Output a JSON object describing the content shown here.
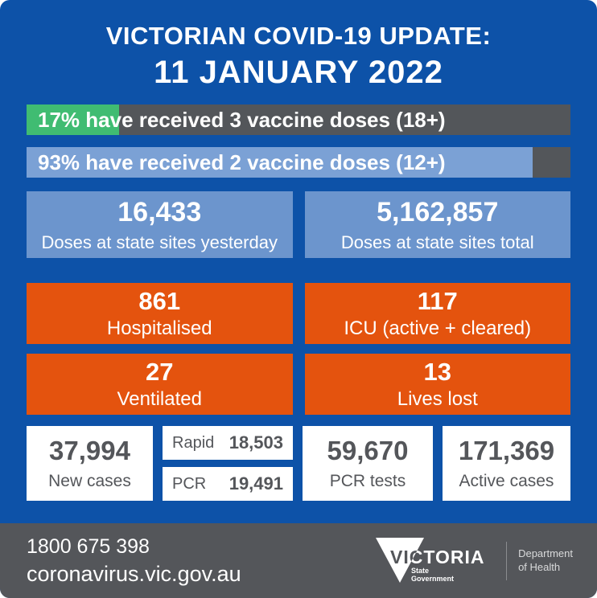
{
  "chart_data": {
    "type": "bar",
    "title": "VICTORIAN COVID-19 UPDATE: 11 JANUARY 2022",
    "categories": [
      "3 vaccine doses (18+)",
      "2 vaccine doses (12+)"
    ],
    "values": [
      17,
      93
    ],
    "unit": "percent of population vaccinated",
    "xlabel": "",
    "ylabel": "",
    "ylim": [
      0,
      100
    ],
    "stats": {
      "doses_at_state_sites_yesterday": 16433,
      "doses_at_state_sites_total": 5162857,
      "hospitalised": 861,
      "icu_active_plus_cleared": 117,
      "ventilated": 27,
      "lives_lost": 13,
      "new_cases": 37994,
      "new_cases_rapid": 18503,
      "new_cases_pcr": 19491,
      "pcr_tests": 59670,
      "active_cases": 171369
    }
  },
  "title": {
    "line1": "VICTORIAN COVID-19 UPDATE:",
    "line2": "11 JANUARY 2022"
  },
  "progress_bars": [
    {
      "percent": 17,
      "label": "17% have received 3 vaccine doses (18+)",
      "fill_color": "#40bc72"
    },
    {
      "percent": 93,
      "label": "93% have received 2 vaccine doses (12+)",
      "fill_color": "#7ba1d5"
    }
  ],
  "dose_stats": [
    {
      "value": "16,433",
      "label": "Doses at state sites yesterday"
    },
    {
      "value": "5,162,857",
      "label": "Doses at state sites total"
    }
  ],
  "hospital_stats": [
    {
      "value": "861",
      "label": "Hospitalised"
    },
    {
      "value": "117",
      "label": "ICU (active + cleared)"
    },
    {
      "value": "27",
      "label": "Ventilated"
    },
    {
      "value": "13",
      "label": "Lives lost"
    }
  ],
  "case_stats": {
    "new_cases": {
      "value": "37,994",
      "label": "New cases"
    },
    "rapid": {
      "label": "Rapid",
      "value": "18,503"
    },
    "pcr": {
      "label": "PCR",
      "value": "19,491"
    },
    "pcr_tests": {
      "value": "59,670",
      "label": "PCR tests"
    },
    "active_cases": {
      "value": "171,369",
      "label": "Active cases"
    }
  },
  "footer": {
    "phone": "1800 675 398",
    "url": "coronavirus.vic.gov.au",
    "logo": {
      "brand": "VICTORIA",
      "sub_line1": "State",
      "sub_line2": "Government",
      "dept_line1": "Department",
      "dept_line2": "of Health"
    }
  },
  "colors": {
    "background_blue": "#0d52a8",
    "panel_grey": "#53565a",
    "green_fill": "#40bc72",
    "light_blue_fill": "#7ba1d5",
    "stat_box_blue": "#6c95cd",
    "orange": "#e4530e",
    "dark_text": "#54565a"
  }
}
